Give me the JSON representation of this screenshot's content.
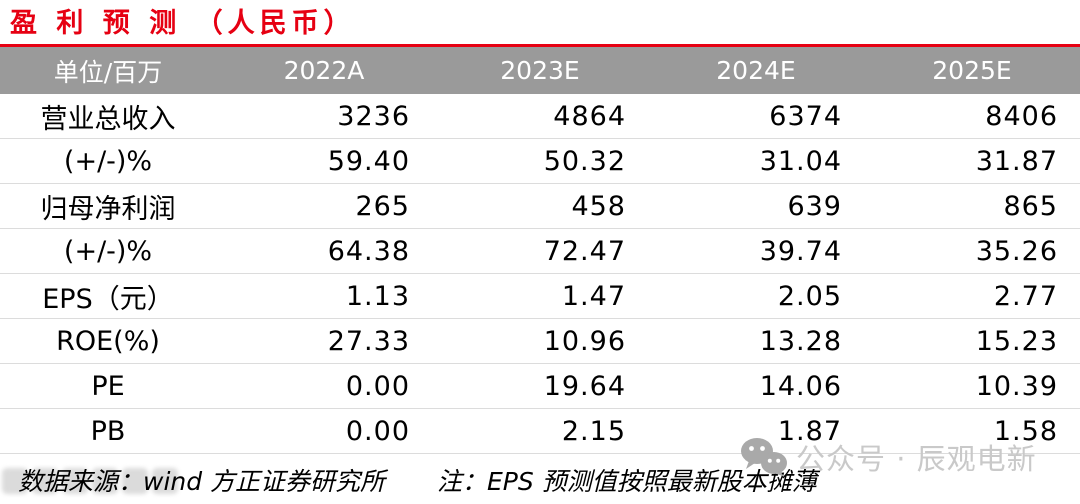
{
  "title": "盈 利 预 测 （人民币）",
  "colors": {
    "accent_red": "#e60012",
    "header_bg": "#9a9a9a",
    "header_text": "#ffffff",
    "row_divider": "#dcdcdc",
    "watermark_gray": "#c9c9c9"
  },
  "table": {
    "columns": [
      "单位/百万",
      "2022A",
      "2023E",
      "2024E",
      "2025E"
    ],
    "rows": [
      {
        "label": "营业总收入",
        "values": [
          "3236",
          "4864",
          "6374",
          "8406"
        ]
      },
      {
        "label": "(+/-)%",
        "values": [
          "59.40",
          "50.32",
          "31.04",
          "31.87"
        ]
      },
      {
        "label": "归母净利润",
        "values": [
          "265",
          "458",
          "639",
          "865"
        ]
      },
      {
        "label": "(+/-)%",
        "values": [
          "64.38",
          "72.47",
          "39.74",
          "35.26"
        ]
      },
      {
        "label": "EPS（元）",
        "values": [
          "1.13",
          "1.47",
          "2.05",
          "2.77"
        ]
      },
      {
        "label": "ROE(%)",
        "values": [
          "27.33",
          "10.96",
          "13.28",
          "15.23"
        ]
      },
      {
        "label": "PE",
        "values": [
          "0.00",
          "19.64",
          "14.06",
          "10.39"
        ]
      },
      {
        "label": "PB",
        "values": [
          "0.00",
          "2.15",
          "1.87",
          "1.58"
        ]
      }
    ]
  },
  "footer": {
    "source": "数据来源：wind 方正证券研究所",
    "note": "注：EPS 预测值按照最新股本摊薄"
  },
  "watermark": {
    "icon": "wechat-icon",
    "text": "公众号 · 辰观电新"
  }
}
